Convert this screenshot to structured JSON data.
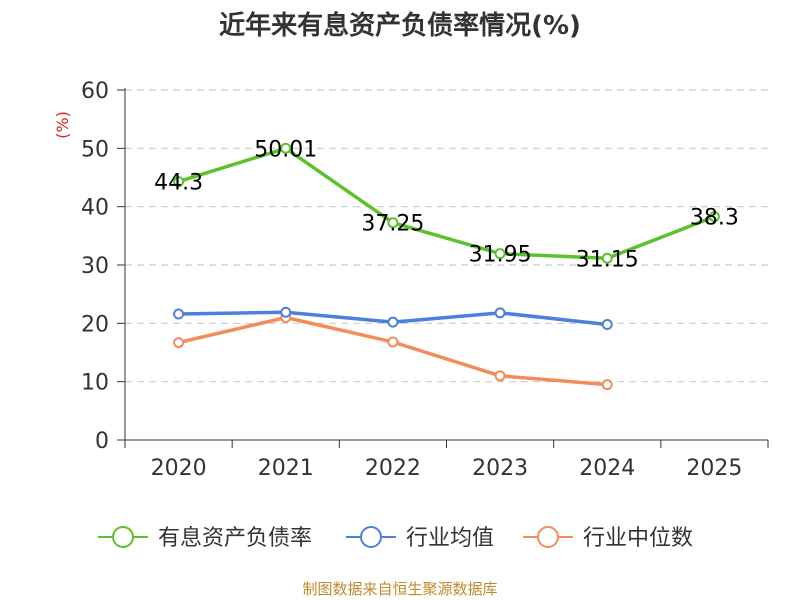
{
  "chart_data": {
    "type": "line",
    "title": "近年来有息资产负债率情况(%)",
    "ylabel": "(%)",
    "xlabel": "",
    "categories": [
      "2020",
      "2021",
      "2022",
      "2023",
      "2024",
      "2025"
    ],
    "ylim": [
      0,
      60
    ],
    "yticks": [
      0,
      10,
      20,
      30,
      40,
      50,
      60
    ],
    "grid": true,
    "legend_position": "bottom",
    "series": [
      {
        "name": "有息资产负债率",
        "color": "#5cc22c",
        "values": [
          44.3,
          50.01,
          37.25,
          31.95,
          31.15,
          38.3
        ],
        "labels": [
          "44.3",
          "50.01",
          "37.25",
          "31.95",
          "31.15",
          "38.3"
        ]
      },
      {
        "name": "行业均值",
        "color": "#4e7fdc",
        "values": [
          21.6,
          21.9,
          20.2,
          21.8,
          19.8,
          null
        ]
      },
      {
        "name": "行业中位数",
        "color": "#f28c5a",
        "values": [
          16.7,
          21.0,
          16.8,
          11.0,
          9.5,
          null
        ]
      }
    ],
    "ylabel_color": "#e02020"
  },
  "footer": {
    "source": "制图数据来自恒生聚源数据库",
    "source_color": "#c08a2a"
  }
}
